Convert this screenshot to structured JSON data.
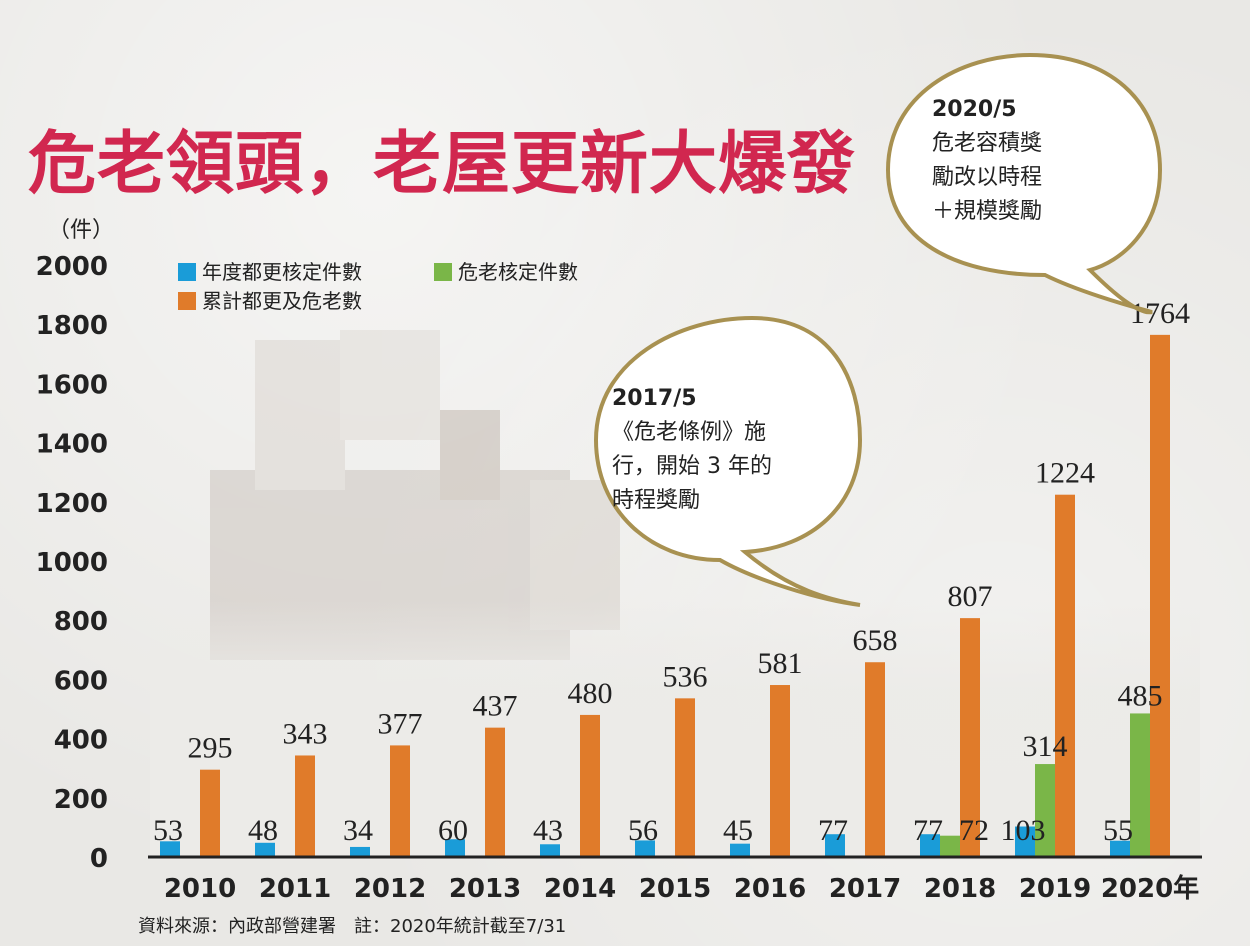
{
  "title": "危老領頭，老屋更新大爆發",
  "unit_label": "（件）",
  "legend": [
    {
      "label": "年度都更核定件數",
      "color": "#1a9cd8"
    },
    {
      "label": "危老核定件數",
      "color": "#7ab648"
    },
    {
      "label": "累計都更及危老數",
      "color": "#e07b2a"
    }
  ],
  "callouts": [
    {
      "lines": [
        "2017/5",
        "《危老條例》施",
        "行，開始 3 年的",
        "時程獎勵"
      ]
    },
    {
      "lines": [
        "2020/5",
        "危老容積獎",
        "勵改以時程",
        "＋規模獎勵"
      ]
    }
  ],
  "source": "資料來源：內政部營建署　註：2020年統計截至7/31",
  "chart_data": {
    "type": "bar",
    "categories": [
      "2010",
      "2011",
      "2012",
      "2013",
      "2014",
      "2015",
      "2016",
      "2017",
      "2018",
      "2019",
      "2020年"
    ],
    "ylim": [
      0,
      2000
    ],
    "yticks": [
      0,
      200,
      400,
      600,
      800,
      1000,
      1200,
      1400,
      1600,
      1800,
      2000
    ],
    "series": [
      {
        "name": "年度都更核定件數",
        "color": "#1a9cd8",
        "values": [
          53,
          48,
          34,
          60,
          43,
          56,
          45,
          77,
          77,
          103,
          55
        ]
      },
      {
        "name": "危老核定件數",
        "color": "#7ab648",
        "values": [
          null,
          null,
          null,
          null,
          null,
          null,
          null,
          null,
          72,
          314,
          485
        ]
      },
      {
        "name": "累計都更及危老數",
        "color": "#e07b2a",
        "values": [
          295,
          343,
          377,
          437,
          480,
          536,
          581,
          658,
          807,
          1224,
          1764
        ]
      }
    ]
  }
}
